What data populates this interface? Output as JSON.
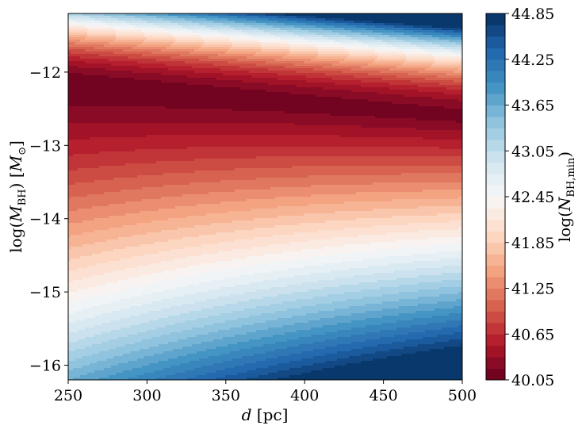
{
  "chart_data": {
    "type": "heatmap",
    "title": "",
    "xlabel": {
      "var": "d",
      "unit": "[pc]"
    },
    "ylabel": {
      "pre": "log(",
      "var": "M",
      "sub": "BH",
      "post": ")",
      "unit_pre": "[",
      "unit_var": "M",
      "unit_sub": "⊙",
      "unit_post": "]"
    },
    "colorbar_label": {
      "pre": "log(",
      "var": "N",
      "sub": "BH,min",
      "post": ")"
    },
    "xlim": [
      250,
      500
    ],
    "ylim": [
      -16.2,
      -11.2
    ],
    "xticks": [
      250,
      300,
      350,
      400,
      450,
      500
    ],
    "yticks": [
      -12,
      -13,
      -14,
      -15,
      -16
    ],
    "ytick_labels": [
      "−12",
      "−13",
      "−14",
      "−15",
      "−16"
    ],
    "colorbar_range": [
      40.05,
      44.85
    ],
    "colorbar_ticks": [
      "40.05",
      "40.65",
      "41.25",
      "41.85",
      "42.45",
      "43.05",
      "43.65",
      "44.25",
      "44.85"
    ],
    "colormap": "RdBu",
    "levels": 32,
    "colormap_stops": [
      "#67001f",
      "#b2182b",
      "#d6604d",
      "#f4a582",
      "#fddbc7",
      "#f7f7f7",
      "#d1e5f0",
      "#92c5de",
      "#4393c3",
      "#2166ac",
      "#053061"
    ],
    "notes_values": {
      "minimum_at": {
        "d": 250,
        "logM": -12.2,
        "logN": 40.05
      },
      "maximum_at": {
        "d": 500,
        "logM": -11.2,
        "logN": 44.85
      }
    }
  }
}
